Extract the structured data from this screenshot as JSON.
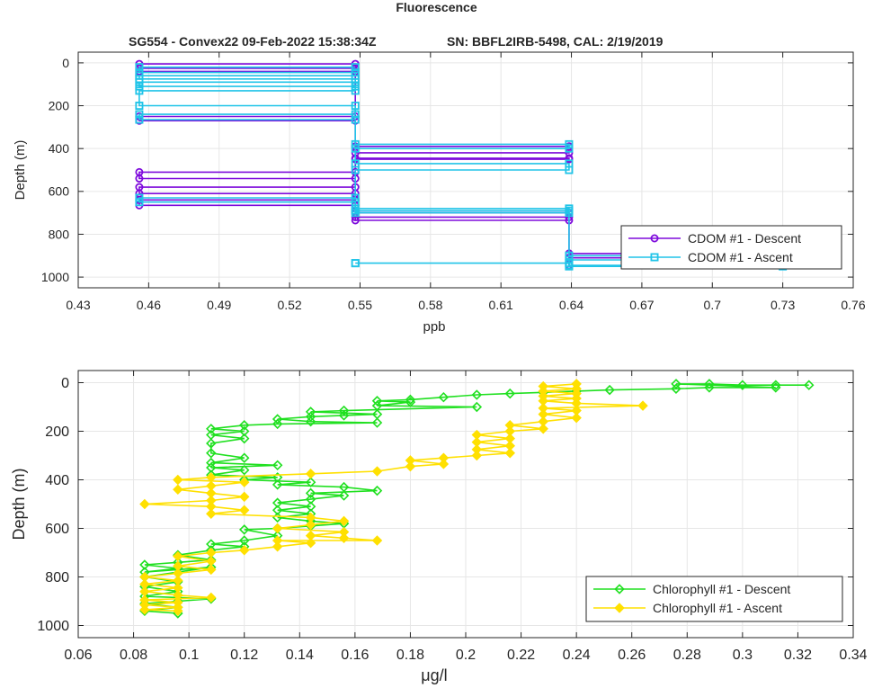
{
  "figure": {
    "title": "Fluorescence",
    "subtitle_left": "SG554 - Convex22 09-Feb-2022 15:38:34Z",
    "subtitle_right": "SN: BBFL2IRB-5498, CAL: 2/19/2019"
  },
  "chart_data": [
    {
      "type": "line",
      "xlabel": "ppb",
      "ylabel": "Depth (m)",
      "xlim": [
        0.43,
        0.76
      ],
      "ylim": [
        1050,
        -50
      ],
      "y_reversed": true,
      "xticks": [
        0.43,
        0.46,
        0.49,
        0.52,
        0.55,
        0.58,
        0.61,
        0.64,
        0.67,
        0.7,
        0.73,
        0.76
      ],
      "xtick_labels": [
        "0.43",
        "0.46",
        "0.49",
        "0.52",
        "0.55",
        "0.58",
        "0.61",
        "0.64",
        "0.67",
        "0.7",
        "0.73",
        "0.76"
      ],
      "yticks": [
        0,
        200,
        400,
        600,
        800,
        1000
      ],
      "ytick_labels": [
        "0",
        "200",
        "400",
        "600",
        "800",
        "1000"
      ],
      "grid": true,
      "legend": {
        "placement": "bottom-right"
      },
      "series": [
        {
          "name": "CDOM #1 - Descent",
          "color": "#7e0bdc",
          "marker": "circle",
          "points": [
            [
              0.456,
              5
            ],
            [
              0.548,
              5
            ],
            [
              0.548,
              25
            ],
            [
              0.456,
              25
            ],
            [
              0.456,
              40
            ],
            [
              0.548,
              40
            ],
            [
              0.548,
              250
            ],
            [
              0.456,
              250
            ],
            [
              0.456,
              270
            ],
            [
              0.548,
              270
            ],
            [
              0.548,
              390
            ],
            [
              0.639,
              390
            ],
            [
              0.639,
              420
            ],
            [
              0.548,
              420
            ],
            [
              0.548,
              445
            ],
            [
              0.639,
              445
            ],
            [
              0.639,
              450
            ],
            [
              0.548,
              450
            ],
            [
              0.548,
              510
            ],
            [
              0.456,
              510
            ],
            [
              0.456,
              540
            ],
            [
              0.548,
              540
            ],
            [
              0.548,
              580
            ],
            [
              0.456,
              580
            ],
            [
              0.456,
              610
            ],
            [
              0.548,
              610
            ],
            [
              0.548,
              640
            ],
            [
              0.456,
              640
            ],
            [
              0.456,
              665
            ],
            [
              0.548,
              665
            ],
            [
              0.548,
              700
            ],
            [
              0.639,
              700
            ],
            [
              0.639,
              720
            ],
            [
              0.548,
              720
            ],
            [
              0.548,
              735
            ],
            [
              0.639,
              735
            ],
            [
              0.639,
              890
            ],
            [
              0.73,
              890
            ],
            [
              0.73,
              910
            ],
            [
              0.639,
              910
            ],
            [
              0.639,
              945
            ]
          ]
        },
        {
          "name": "CDOM #1 - Ascent",
          "color": "#20c4e8",
          "marker": "square",
          "points": [
            [
              0.639,
              950
            ],
            [
              0.73,
              950
            ],
            [
              0.73,
              945
            ],
            [
              0.639,
              945
            ],
            [
              0.639,
              935
            ],
            [
              0.548,
              935
            ],
            [
              0.548,
              935
            ],
            [
              0.639,
              935
            ],
            [
              0.639,
              920
            ],
            [
              0.73,
              920
            ],
            [
              0.73,
              900
            ],
            [
              0.639,
              900
            ],
            [
              0.639,
              700
            ],
            [
              0.548,
              700
            ],
            [
              0.548,
              690
            ],
            [
              0.639,
              690
            ],
            [
              0.639,
              680
            ],
            [
              0.548,
              680
            ],
            [
              0.548,
              650
            ],
            [
              0.456,
              650
            ],
            [
              0.456,
              630
            ],
            [
              0.548,
              630
            ],
            [
              0.548,
              500
            ],
            [
              0.639,
              500
            ],
            [
              0.639,
              470
            ],
            [
              0.548,
              470
            ],
            [
              0.548,
              400
            ],
            [
              0.639,
              400
            ],
            [
              0.639,
              380
            ],
            [
              0.548,
              380
            ],
            [
              0.548,
              265
            ],
            [
              0.456,
              265
            ],
            [
              0.456,
              240
            ],
            [
              0.548,
              240
            ],
            [
              0.548,
              200
            ],
            [
              0.456,
              200
            ],
            [
              0.456,
              130
            ],
            [
              0.548,
              130
            ],
            [
              0.548,
              110
            ],
            [
              0.456,
              110
            ],
            [
              0.456,
              90
            ],
            [
              0.548,
              90
            ],
            [
              0.548,
              75
            ],
            [
              0.456,
              75
            ],
            [
              0.456,
              60
            ],
            [
              0.548,
              60
            ],
            [
              0.548,
              45
            ],
            [
              0.456,
              45
            ],
            [
              0.456,
              20
            ],
            [
              0.548,
              20
            ]
          ]
        }
      ]
    },
    {
      "type": "line",
      "xlabel": "μg/l",
      "ylabel": "Depth (m)",
      "xlim": [
        0.06,
        0.34
      ],
      "ylim": [
        1050,
        -50
      ],
      "y_reversed": true,
      "xticks": [
        0.06,
        0.08,
        0.1,
        0.12,
        0.14,
        0.16,
        0.18,
        0.2,
        0.22,
        0.24,
        0.26,
        0.28,
        0.3,
        0.32,
        0.34
      ],
      "xtick_labels": [
        "0.06",
        "0.08",
        "0.1",
        "0.12",
        "0.14",
        "0.16",
        "0.18",
        "0.2",
        "0.22",
        "0.24",
        "0.26",
        "0.28",
        "0.3",
        "0.32",
        "0.34"
      ],
      "yticks": [
        0,
        200,
        400,
        600,
        800,
        1000
      ],
      "ytick_labels": [
        "0",
        "200",
        "400",
        "600",
        "800",
        "1000"
      ],
      "grid": true,
      "legend": {
        "placement": "bottom-right"
      },
      "series": [
        {
          "name": "Chlorophyll #1 - Descent",
          "color": "#20e020",
          "marker": "diamond",
          "points": [
            [
              0.324,
              10
            ],
            [
              0.312,
              10
            ],
            [
              0.3,
              10
            ],
            [
              0.288,
              5
            ],
            [
              0.276,
              5
            ],
            [
              0.312,
              20
            ],
            [
              0.288,
              20
            ],
            [
              0.276,
              25
            ],
            [
              0.252,
              30
            ],
            [
              0.24,
              35
            ],
            [
              0.228,
              40
            ],
            [
              0.216,
              45
            ],
            [
              0.204,
              50
            ],
            [
              0.192,
              60
            ],
            [
              0.18,
              70
            ],
            [
              0.168,
              75
            ],
            [
              0.18,
              80
            ],
            [
              0.168,
              95
            ],
            [
              0.204,
              100
            ],
            [
              0.156,
              115
            ],
            [
              0.144,
              120
            ],
            [
              0.168,
              130
            ],
            [
              0.156,
              135
            ],
            [
              0.144,
              140
            ],
            [
              0.132,
              150
            ],
            [
              0.144,
              160
            ],
            [
              0.168,
              165
            ],
            [
              0.132,
              170
            ],
            [
              0.12,
              175
            ],
            [
              0.108,
              190
            ],
            [
              0.12,
              200
            ],
            [
              0.108,
              215
            ],
            [
              0.12,
              230
            ],
            [
              0.108,
              250
            ],
            [
              0.108,
              290
            ],
            [
              0.12,
              310
            ],
            [
              0.108,
              330
            ],
            [
              0.132,
              340
            ],
            [
              0.108,
              350
            ],
            [
              0.12,
              360
            ],
            [
              0.108,
              380
            ],
            [
              0.132,
              390
            ],
            [
              0.12,
              400
            ],
            [
              0.144,
              410
            ],
            [
              0.132,
              420
            ],
            [
              0.156,
              430
            ],
            [
              0.168,
              445
            ],
            [
              0.144,
              455
            ],
            [
              0.156,
              465
            ],
            [
              0.144,
              480
            ],
            [
              0.132,
              495
            ],
            [
              0.144,
              510
            ],
            [
              0.132,
              525
            ],
            [
              0.144,
              540
            ],
            [
              0.132,
              555
            ],
            [
              0.144,
              570
            ],
            [
              0.156,
              580
            ],
            [
              0.144,
              590
            ],
            [
              0.132,
              600
            ],
            [
              0.12,
              605
            ],
            [
              0.132,
              630
            ],
            [
              0.12,
              650
            ],
            [
              0.108,
              665
            ],
            [
              0.12,
              675
            ],
            [
              0.108,
              690
            ],
            [
              0.096,
              710
            ],
            [
              0.108,
              730
            ],
            [
              0.096,
              740
            ],
            [
              0.084,
              750
            ],
            [
              0.096,
              765
            ],
            [
              0.084,
              780
            ],
            [
              0.108,
              760
            ],
            [
              0.084,
              800
            ],
            [
              0.096,
              820
            ],
            [
              0.084,
              840
            ],
            [
              0.096,
              860
            ],
            [
              0.084,
              880
            ],
            [
              0.108,
              890
            ],
            [
              0.096,
              900
            ],
            [
              0.084,
              910
            ],
            [
              0.096,
              925
            ],
            [
              0.084,
              940
            ],
            [
              0.096,
              950
            ]
          ]
        },
        {
          "name": "Chlorophyll #1 - Ascent",
          "color": "#ffe000",
          "marker": "diamond",
          "points": [
            [
              0.096,
              940
            ],
            [
              0.084,
              935
            ],
            [
              0.096,
              925
            ],
            [
              0.084,
              915
            ],
            [
              0.096,
              905
            ],
            [
              0.084,
              895
            ],
            [
              0.108,
              885
            ],
            [
              0.096,
              875
            ],
            [
              0.084,
              860
            ],
            [
              0.096,
              845
            ],
            [
              0.084,
              830
            ],
            [
              0.096,
              815
            ],
            [
              0.084,
              800
            ],
            [
              0.096,
              785
            ],
            [
              0.108,
              770
            ],
            [
              0.096,
              755
            ],
            [
              0.108,
              735
            ],
            [
              0.096,
              715
            ],
            [
              0.108,
              700
            ],
            [
              0.12,
              690
            ],
            [
              0.132,
              675
            ],
            [
              0.144,
              660
            ],
            [
              0.132,
              650
            ],
            [
              0.168,
              650
            ],
            [
              0.156,
              640
            ],
            [
              0.144,
              630
            ],
            [
              0.156,
              615
            ],
            [
              0.132,
              600
            ],
            [
              0.144,
              585
            ],
            [
              0.156,
              570
            ],
            [
              0.144,
              555
            ],
            [
              0.108,
              540
            ],
            [
              0.12,
              525
            ],
            [
              0.108,
              510
            ],
            [
              0.084,
              500
            ],
            [
              0.108,
              485
            ],
            [
              0.12,
              470
            ],
            [
              0.108,
              455
            ],
            [
              0.096,
              440
            ],
            [
              0.108,
              425
            ],
            [
              0.12,
              410
            ],
            [
              0.096,
              400
            ],
            [
              0.108,
              390
            ],
            [
              0.144,
              375
            ],
            [
              0.168,
              365
            ],
            [
              0.18,
              345
            ],
            [
              0.192,
              335
            ],
            [
              0.18,
              320
            ],
            [
              0.192,
              310
            ],
            [
              0.204,
              300
            ],
            [
              0.216,
              290
            ],
            [
              0.204,
              275
            ],
            [
              0.216,
              260
            ],
            [
              0.204,
              245
            ],
            [
              0.216,
              230
            ],
            [
              0.204,
              215
            ],
            [
              0.216,
              200
            ],
            [
              0.228,
              190
            ],
            [
              0.216,
              175
            ],
            [
              0.228,
              160
            ],
            [
              0.24,
              145
            ],
            [
              0.228,
              130
            ],
            [
              0.24,
              115
            ],
            [
              0.228,
              105
            ],
            [
              0.264,
              95
            ],
            [
              0.24,
              85
            ],
            [
              0.228,
              75
            ],
            [
              0.24,
              65
            ],
            [
              0.228,
              55
            ],
            [
              0.24,
              45
            ],
            [
              0.228,
              35
            ],
            [
              0.24,
              25
            ],
            [
              0.228,
              15
            ],
            [
              0.24,
              5
            ]
          ]
        }
      ]
    }
  ]
}
